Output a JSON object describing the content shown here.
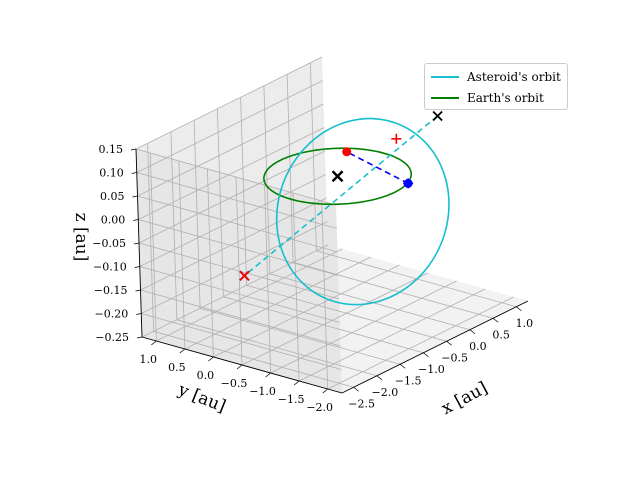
{
  "chart_data": {
    "type": "line",
    "projection": "3d",
    "xlabel": "x [au]",
    "ylabel": "y [au]",
    "zlabel": "z [au]",
    "x_ticks": [
      "−2.5",
      "−2.0",
      "−1.5",
      "−1.0",
      "−0.5",
      "0.0",
      "0.5",
      "1.0"
    ],
    "y_ticks": [
      "1.0",
      "0.5",
      "0.0",
      "−0.5",
      "−1.0",
      "−1.5",
      "−2.0"
    ],
    "z_ticks": [
      "0.15",
      "0.10",
      "0.05",
      "0.00",
      "−0.05",
      "−0.10",
      "−0.15",
      "−0.20",
      "−0.25"
    ],
    "xlim": [
      -2.75,
      1.25
    ],
    "ylim": [
      -2.25,
      1.25
    ],
    "zlim": [
      -0.25,
      0.15
    ],
    "grid": true,
    "legend_position": "top-right",
    "series": [
      {
        "name": "Asteroid's orbit",
        "color": "#17becf",
        "style": "solid",
        "kind": "ellipse",
        "a": 1.3,
        "e": 0.5,
        "inc_deg": 6,
        "node_deg": -70,
        "peri_deg": 140
      },
      {
        "name": "Earth's orbit",
        "color": "#008000",
        "style": "solid",
        "kind": "circle",
        "radius": 1.0
      }
    ],
    "line_of_nodes": {
      "color": "#17becf",
      "style": "dashed"
    },
    "earth_to_asteroid_link": {
      "color": "#0000ff",
      "style": "dashed"
    },
    "markers": [
      {
        "name": "sun",
        "symbol": "x",
        "color": "#000000",
        "x": 0.0,
        "y": 0.0,
        "z": 0.0
      },
      {
        "name": "earth",
        "symbol": "o",
        "color": "#0000ff",
        "x": 0.35,
        "y": -0.95,
        "z": 0.0
      },
      {
        "name": "earth-cross",
        "symbol": "+",
        "color": "#0000ff",
        "x": 0.35,
        "y": -0.95,
        "z": 0.0
      },
      {
        "name": "asteroid",
        "symbol": "o",
        "color": "#ff0000",
        "x": 0.75,
        "y": 0.45,
        "z": 0.0
      },
      {
        "name": "asteroid-cross",
        "symbol": "+",
        "color": "#ff0000",
        "x": 0.85,
        "y": -0.35,
        "z": 0.05
      },
      {
        "name": "ascending-node",
        "symbol": "x",
        "color": "#000000",
        "x": 0.9,
        "y": -1.05,
        "z": 0.12
      },
      {
        "name": "descending-node",
        "symbol": "x",
        "color": "#000000",
        "x": -0.9,
        "y": 0.95,
        "z": -0.2
      },
      {
        "name": "descending-node-red",
        "symbol": "x",
        "color": "#ff0000",
        "x": -0.9,
        "y": 0.95,
        "z": -0.2
      }
    ]
  }
}
